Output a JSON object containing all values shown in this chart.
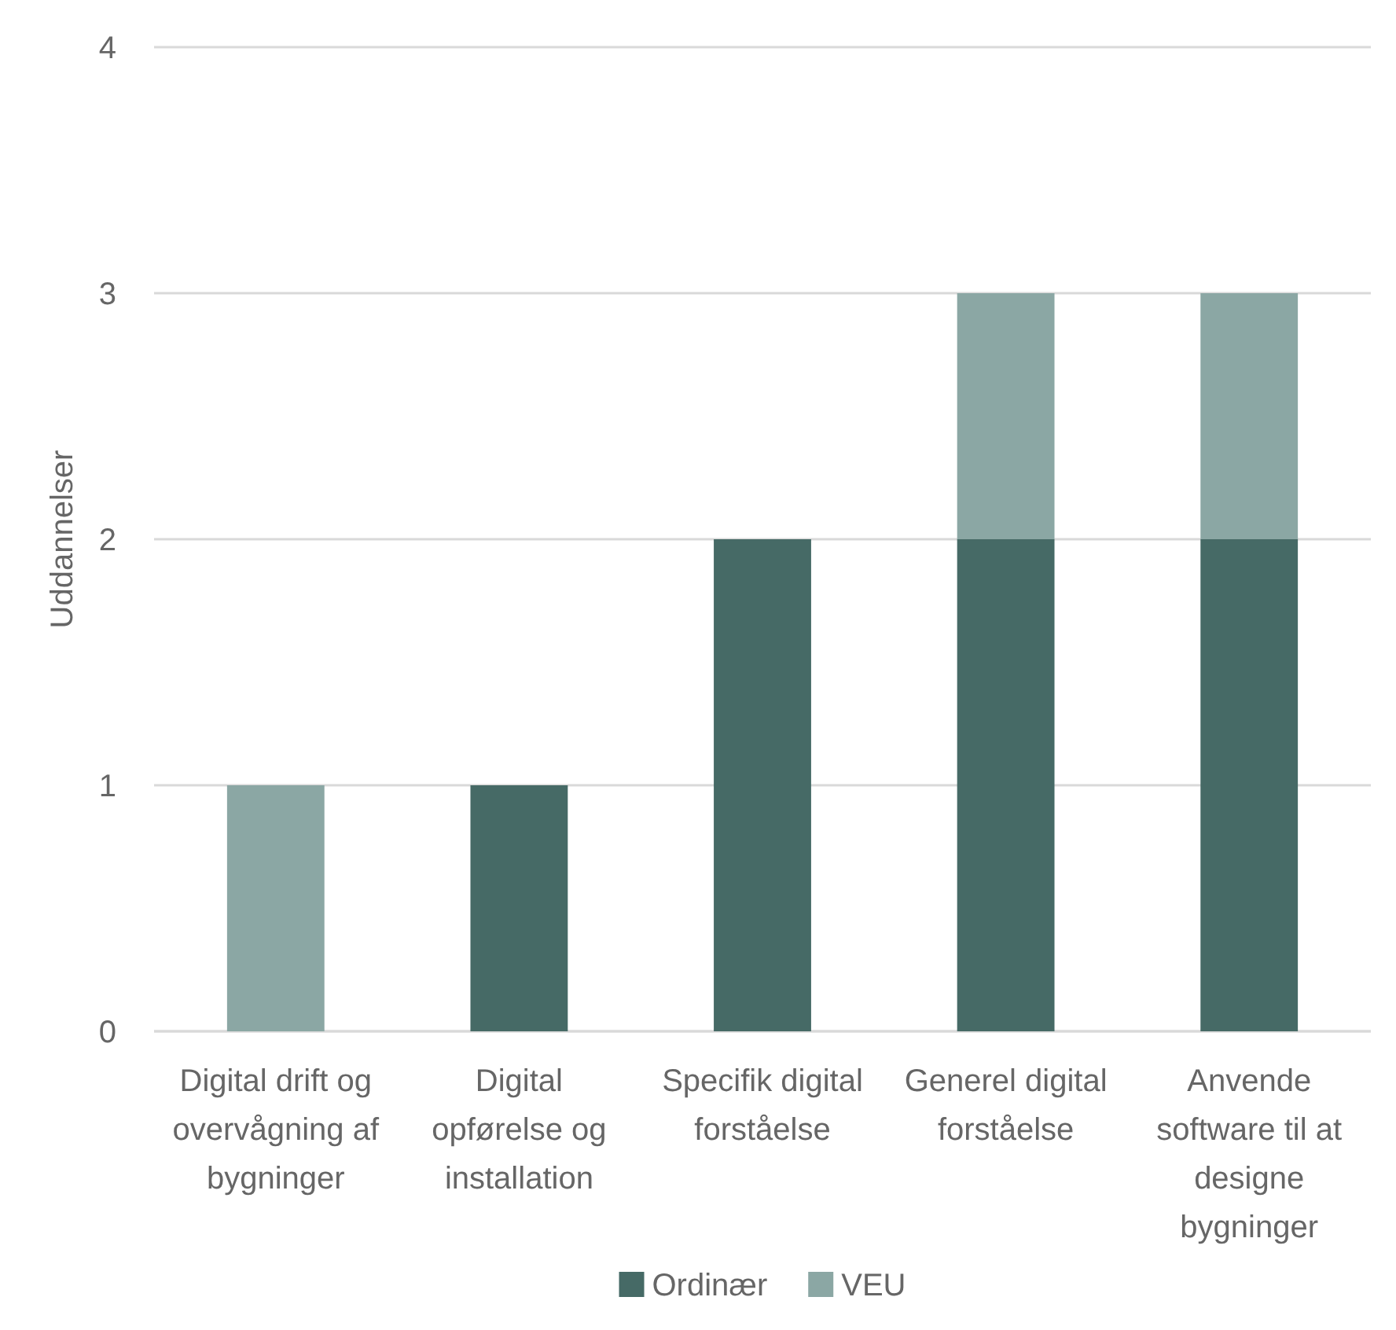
{
  "chart_data": {
    "type": "bar",
    "stacked": true,
    "categories": [
      "Digital drift og overvågning af bygninger",
      "Digital opførelse og installation",
      "Specifik digital forståelse",
      "Generel digital forståelse",
      "Anvende software til at designe bygninger"
    ],
    "series": [
      {
        "name": "Ordinær",
        "color": "#466a66",
        "values": [
          0,
          1,
          2,
          2,
          2
        ]
      },
      {
        "name": "VEU",
        "color": "#8ba7a4",
        "values": [
          1,
          0,
          0,
          1,
          1
        ]
      }
    ],
    "ylabel": "Uddannelser",
    "ylim": [
      0,
      4
    ],
    "yticks": [
      0,
      1,
      2,
      3,
      4
    ],
    "grid": "y",
    "legend": "bottom"
  }
}
